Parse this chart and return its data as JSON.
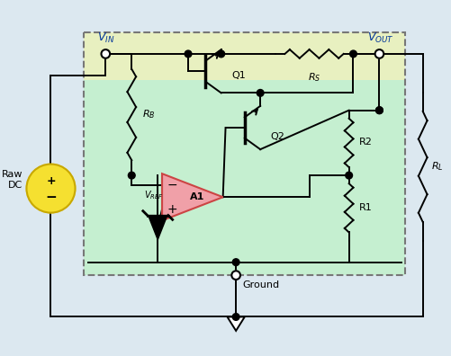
{
  "bg_color": "#dce8f0",
  "inner_bg_color": "#c5efd0",
  "top_strip_color": "#e8f0c0",
  "line_color": "#000000",
  "opamp_color": "#f0a0a8",
  "battery_color": "#f5e030",
  "battery_border": "#c8a800",
  "a1_label": "A1",
  "q1_label": "Q1",
  "q2_label": "Q2",
  "rs_label": "R_S",
  "rb_label": "R_B",
  "r2_label": "R2",
  "r1_label": "R1",
  "rl_label": "R_L",
  "vref_label": "V_{REF}",
  "ground_label": "Ground",
  "raw_dc_label": "Raw\nDC",
  "fig_width": 5.02,
  "fig_height": 3.96,
  "dpi": 100
}
